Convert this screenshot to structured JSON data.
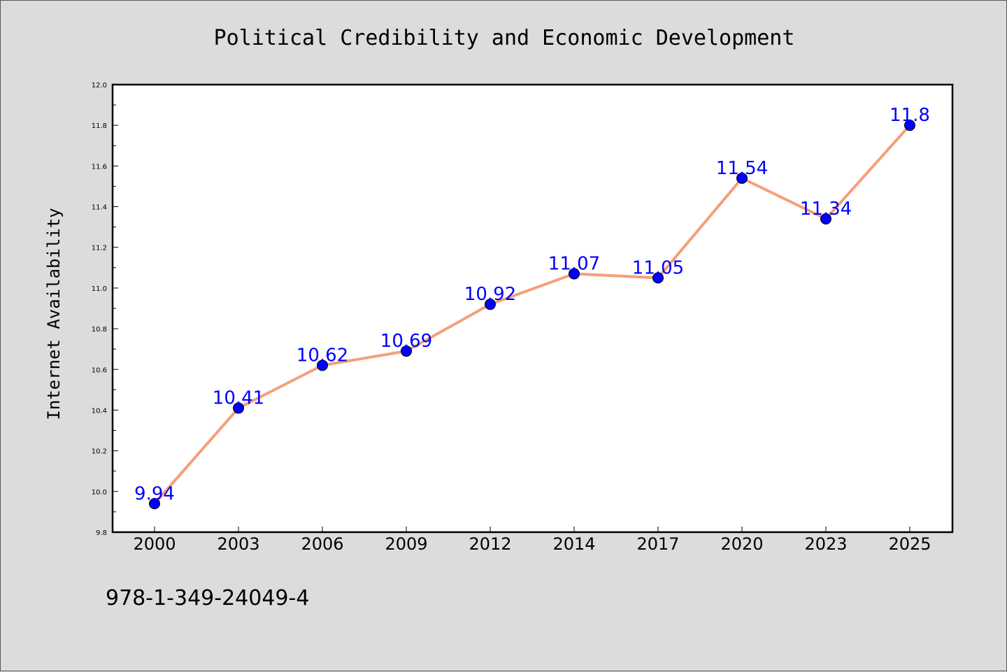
{
  "chart_data": {
    "type": "line",
    "title": "Political Credibility and Economic Development",
    "xlabel": "",
    "ylabel": "Internet Availability",
    "categories": [
      "2000",
      "2003",
      "2006",
      "2009",
      "2012",
      "2014",
      "2017",
      "2020",
      "2023",
      "2025"
    ],
    "values": [
      9.94,
      10.41,
      10.62,
      10.69,
      10.92,
      11.07,
      11.05,
      11.54,
      11.34,
      11.8
    ],
    "data_labels": [
      "9.94",
      "10.41",
      "10.62",
      "10.69",
      "10.92",
      "11.07",
      "11.05",
      "11.54",
      "11.34",
      "11.8"
    ],
    "ylim": [
      9.8,
      12.0
    ],
    "yticks": [
      "9.8",
      "10.0",
      "10.2",
      "10.4",
      "10.6",
      "10.8",
      "11.0",
      "11.2",
      "11.4",
      "11.6",
      "11.8",
      "12.0"
    ],
    "grid": false,
    "line_color": "#f4a07a",
    "marker_color": "#0000ff",
    "label_color": "#0000ff"
  },
  "footer": {
    "isbn": "978-1-349-24049-4"
  }
}
